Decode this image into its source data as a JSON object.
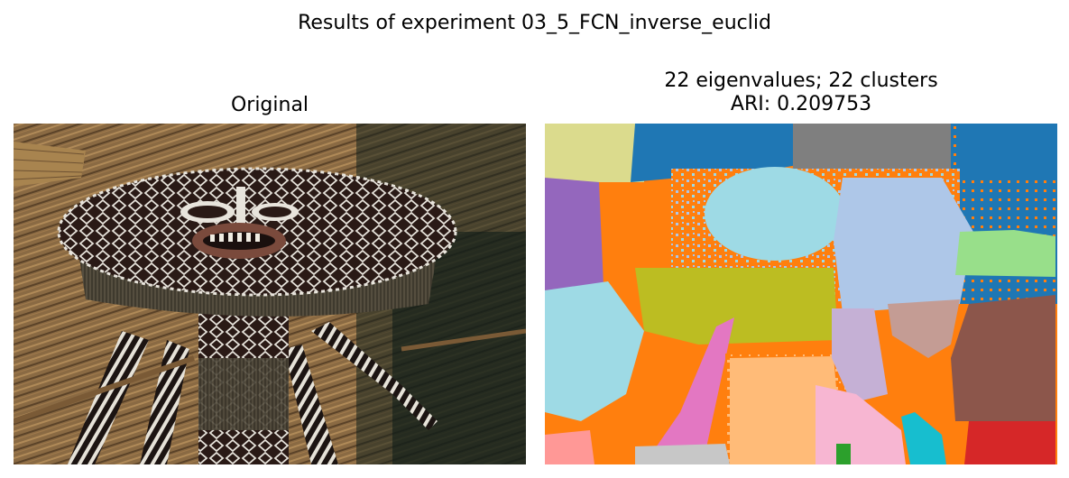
{
  "figure": {
    "suptitle": "Results of experiment 03_5_FCN_inverse_euclid"
  },
  "left_panel": {
    "title": "Original",
    "image_description_icon": "tribal-mask-photo",
    "colors": {
      "straw": "#8a6a43",
      "straw_dark": "#5a4228",
      "mask_dark": "#2a1a16",
      "mask_pattern": "#e8e4dc",
      "lips": "#7a4a3c",
      "fringe": "#4e4636",
      "shadow": "#12211c"
    }
  },
  "right_panel": {
    "title_line1": "22 eigenvalues; 22 clusters",
    "title_line2": "ARI: 0.209753",
    "image_description_icon": "segmentation-map",
    "colors": {
      "orange": "#ff7f0e",
      "blue": "#1f77b4",
      "gray": "#7f7f7f",
      "khaki": "#dbdb8d",
      "light_blue": "#9edae5",
      "lavender_blue": "#aec7e8",
      "purple": "#9467bd",
      "olive": "#bcbd22",
      "light_green": "#98df8a",
      "rose_brown": "#c49c94",
      "brown": "#8c564b",
      "pink": "#e377c2",
      "light_purple": "#c5b0d5",
      "peach": "#ffbb78",
      "light_pink": "#f7b6d2",
      "cyan": "#17becf",
      "green": "#2ca02c",
      "red": "#d62728",
      "salmon": "#ff9896",
      "silver": "#c7c7c7"
    }
  }
}
